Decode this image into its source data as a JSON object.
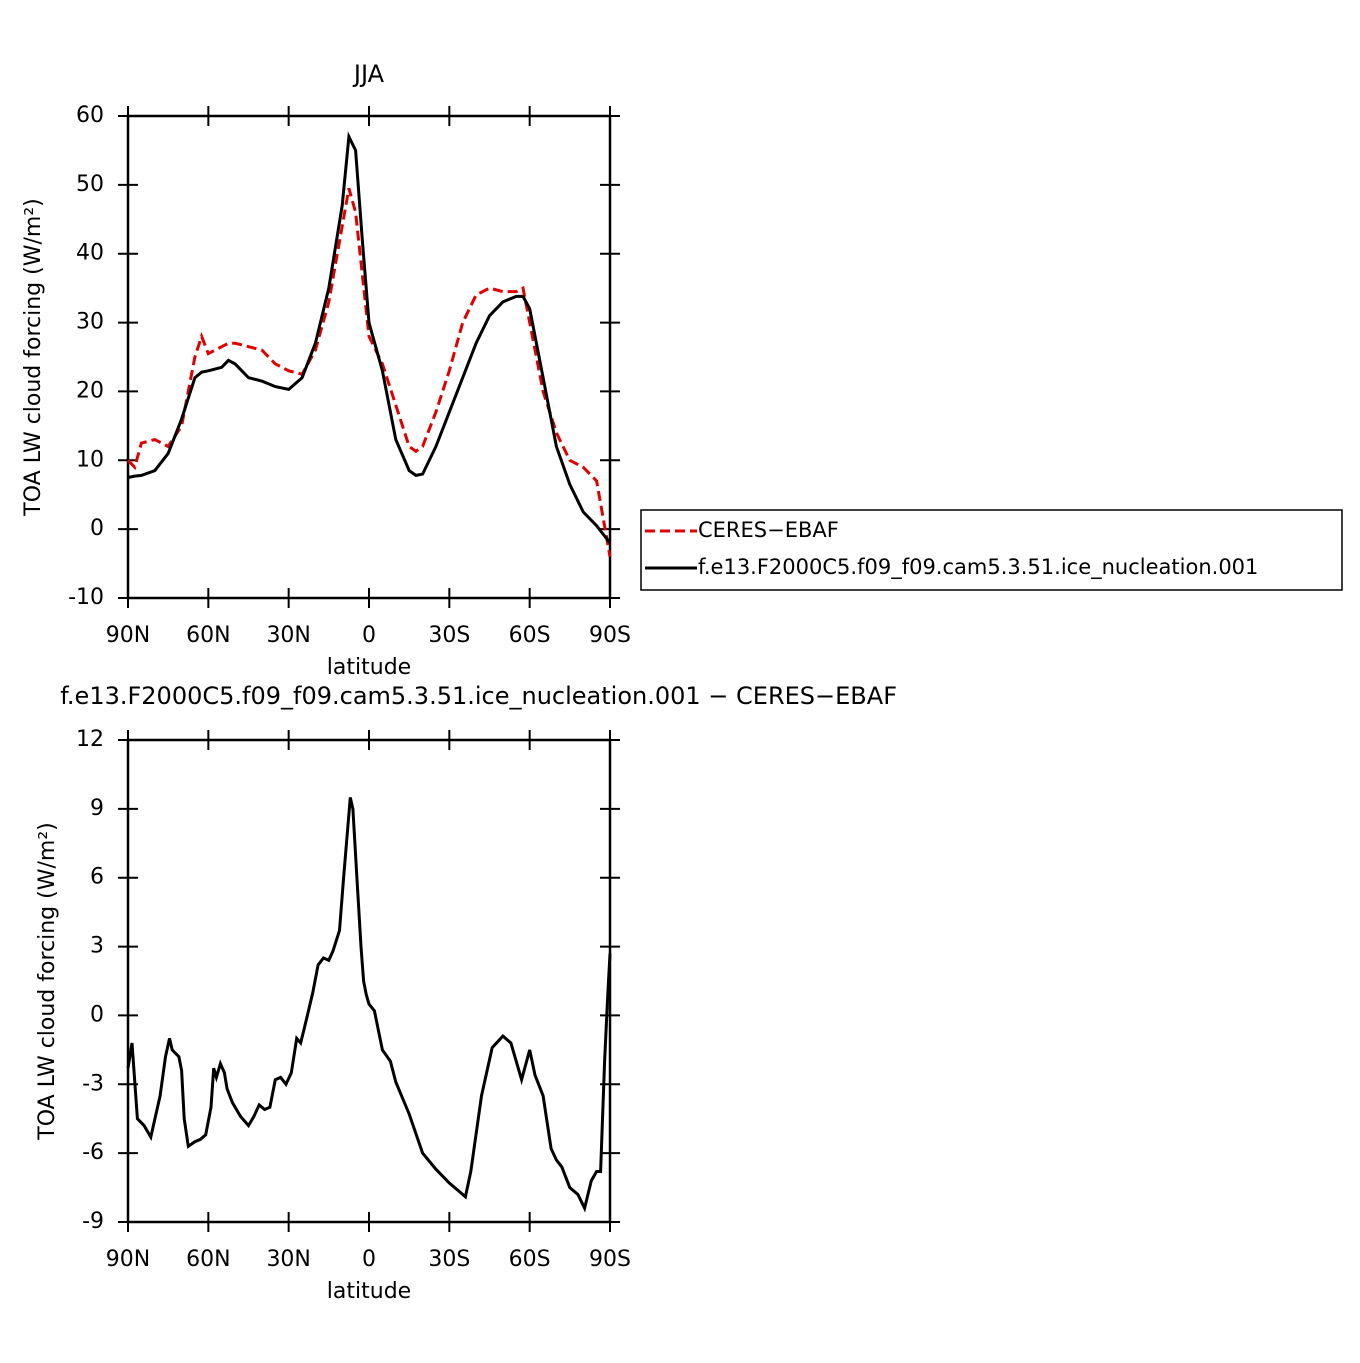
{
  "chart_data": [
    {
      "type": "line",
      "title": "JJA",
      "x_label": "latitude",
      "y_label": "TOA LW cloud forcing (W/m²)",
      "x": [
        90,
        87.5,
        85,
        80,
        75,
        70,
        65,
        62.5,
        60,
        55,
        52.5,
        50,
        45,
        40,
        35,
        30,
        25,
        20,
        15,
        10,
        7.5,
        5,
        2.5,
        0,
        -5,
        -10,
        -15,
        -17.5,
        -20,
        -25,
        -30,
        -35,
        -40,
        -45,
        -50,
        -55,
        -57.5,
        -60,
        -65,
        -70,
        -75,
        -80,
        -85,
        -90
      ],
      "series": [
        {
          "name": "CERES−EBAF",
          "color": "#e00000",
          "dash": true,
          "values": [
            10,
            9,
            12.5,
            13,
            12,
            15,
            25,
            28,
            25.5,
            26.5,
            27,
            27,
            26.5,
            26,
            24,
            23,
            22.5,
            26,
            33,
            44,
            49.5,
            46,
            37,
            28,
            24,
            18,
            12,
            11.3,
            12,
            17,
            23,
            30,
            34,
            35,
            34.5,
            34.5,
            35,
            30,
            20,
            14,
            10,
            9,
            7,
            -4
          ]
        },
        {
          "name": "f.e13.F2000C5.f09_f09.cam5.3.51.ice_nucleation.001",
          "color": "#000000",
          "dash": false,
          "values": [
            7.5,
            7.7,
            7.8,
            8.5,
            11,
            16,
            22,
            22.8,
            23,
            23.5,
            24.5,
            24,
            22,
            21.5,
            20.7,
            20.3,
            22,
            27,
            35,
            47,
            57,
            55,
            42,
            30,
            23,
            13,
            8.5,
            7.8,
            8,
            12,
            17,
            22,
            27,
            31,
            33,
            33.8,
            33.8,
            32,
            22,
            12,
            6.5,
            2.5,
            0.5,
            -2
          ]
        }
      ],
      "xlim": [
        90,
        -90
      ],
      "xticks": [
        {
          "value": 90,
          "label": "90N"
        },
        {
          "value": 60,
          "label": "60N"
        },
        {
          "value": 30,
          "label": "30N"
        },
        0,
        {
          "value": -30,
          "label": "30S"
        },
        {
          "value": -60,
          "label": "60S"
        },
        {
          "value": -90,
          "label": "90S"
        }
      ],
      "ylim": [
        -10,
        60
      ],
      "yticks": [
        -10,
        0,
        10,
        20,
        30,
        40,
        50,
        60
      ],
      "legend_loc": "right"
    },
    {
      "type": "line",
      "title": "f.e13.F2000C5.f09_f09.cam5.3.51.ice_nucleation.001 − CERES−EBAF",
      "x_label": "latitude",
      "y_label": "TOA LW cloud forcing (W/m²)",
      "x": [
        90,
        88.5,
        86.5,
        84,
        81.5,
        78,
        76,
        74.5,
        73.5,
        71,
        70,
        69,
        67.5,
        65,
        63,
        61,
        59,
        58,
        57,
        55.5,
        54,
        53,
        51,
        48,
        45,
        43,
        41,
        39,
        37,
        35,
        33,
        31,
        29,
        27,
        25.5,
        23,
        21,
        19,
        17,
        15,
        13.5,
        11,
        9.5,
        7,
        6,
        4.5,
        3,
        2,
        1,
        0,
        -2,
        -5,
        -8,
        -10,
        -15,
        -20,
        -25,
        -30,
        -33,
        -36,
        -38,
        -42,
        -46,
        -50,
        -53,
        -57,
        -60,
        -62,
        -65,
        -68,
        -70,
        -72,
        -75,
        -78,
        -80.5,
        -83,
        -85,
        -86.5,
        -88,
        -89,
        -90
      ],
      "values": [
        -2.3,
        -1.2,
        -4.5,
        -4.8,
        -5.3,
        -3.5,
        -1.8,
        -1,
        -1.5,
        -1.8,
        -2.4,
        -4.5,
        -5.7,
        -5.5,
        -5.4,
        -5.2,
        -4,
        -2.3,
        -2.7,
        -2.1,
        -2.5,
        -3.2,
        -3.8,
        -4.4,
        -4.8,
        -4.4,
        -3.9,
        -4.1,
        -4,
        -2.8,
        -2.7,
        -3,
        -2.5,
        -1,
        -1.2,
        0,
        1,
        2.2,
        2.5,
        2.4,
        2.8,
        3.7,
        6,
        9.5,
        9,
        6,
        3,
        1.5,
        0.9,
        0.5,
        0.2,
        -1.5,
        -2,
        -2.9,
        -4.3,
        -6,
        -6.7,
        -7.3,
        -7.6,
        -7.9,
        -6.8,
        -3.5,
        -1.4,
        -0.9,
        -1.2,
        -2.8,
        -1.5,
        -2.6,
        -3.5,
        -5.8,
        -6.3,
        -6.6,
        -7.5,
        -7.8,
        -8.4,
        -7.2,
        -6.8,
        -6.8,
        -2,
        0.5,
        2.7
      ],
      "color": "#000000",
      "xlim": [
        90,
        -90
      ],
      "xticks": [
        {
          "value": 90,
          "label": "90N"
        },
        {
          "value": 60,
          "label": "60N"
        },
        {
          "value": 30,
          "label": "30N"
        },
        0,
        {
          "value": -30,
          "label": "30S"
        },
        {
          "value": -60,
          "label": "60S"
        },
        {
          "value": -90,
          "label": "90S"
        }
      ],
      "ylim": [
        -9,
        12
      ],
      "yticks": [
        -9,
        -6,
        -3,
        0,
        3,
        6,
        9,
        12
      ]
    }
  ]
}
